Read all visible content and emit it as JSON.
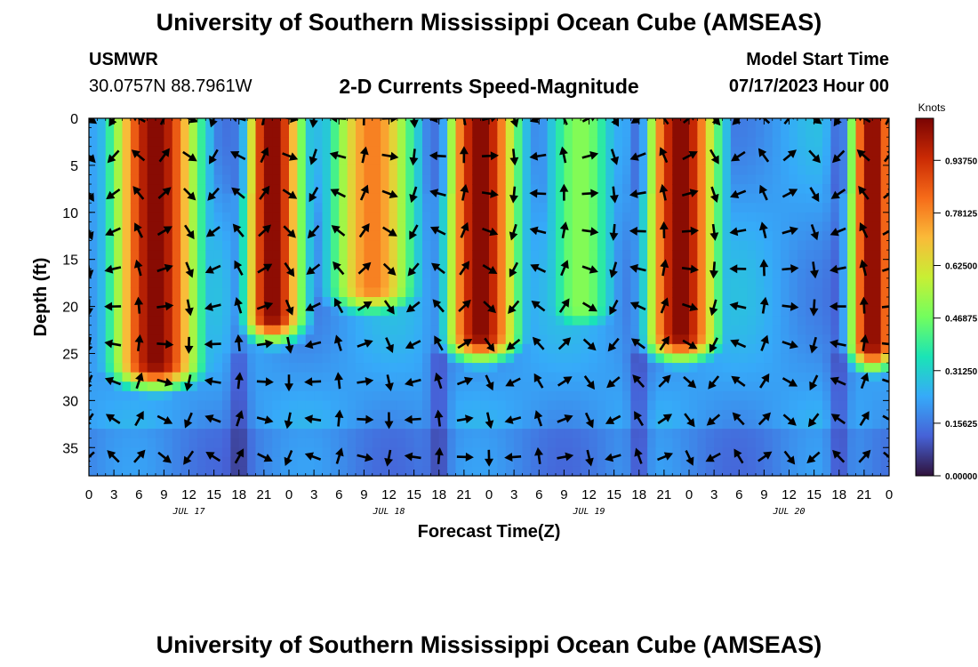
{
  "header": {
    "title": "University of Southern Mississippi Ocean Cube (AMSEAS)",
    "station": "USMWR",
    "coords": "30.0757N  88.7961W",
    "chart_title": "2-D Currents Speed-Magnitude",
    "model_start_label": "Model Start Time",
    "model_start_value": "07/17/2023 Hour 00"
  },
  "footer": {
    "title": "University of Southern Mississippi Ocean Cube (AMSEAS)"
  },
  "colors": {
    "background": "#ffffff",
    "palette": [
      "#30123b",
      "#4662d7",
      "#36aaf9",
      "#1ae4b6",
      "#72fe5e",
      "#c8ef34",
      "#faba39",
      "#f66b19",
      "#ca2a04",
      "#7a0403"
    ]
  },
  "chart_data": {
    "type": "heatmap",
    "title": "2-D Currents Speed-Magnitude",
    "xlabel": "Forecast Time(Z)",
    "ylabel": "Depth (ft)",
    "x_range_hours": [
      0,
      96
    ],
    "y_range_ft": [
      0,
      38
    ],
    "y_inverted": true,
    "x_tick_labels": [
      "0",
      "3",
      "6",
      "9",
      "12",
      "15",
      "18",
      "21",
      "0",
      "3",
      "6",
      "9",
      "12",
      "15",
      "18",
      "21",
      "0",
      "3",
      "6",
      "9",
      "12",
      "15",
      "18",
      "21",
      "0",
      "3",
      "6",
      "9",
      "12",
      "15",
      "18",
      "21",
      "0"
    ],
    "y_tick_labels": [
      "0",
      "5",
      "10",
      "15",
      "20",
      "25",
      "30",
      "35"
    ],
    "y_tick_values": [
      0,
      5,
      10,
      15,
      20,
      25,
      30,
      35
    ],
    "day_labels": [
      {
        "text": "JUL 17",
        "hour": 12
      },
      {
        "text": "JUL 18",
        "hour": 36
      },
      {
        "text": "JUL 19",
        "hour": 60
      },
      {
        "text": "JUL 20",
        "hour": 84
      }
    ],
    "colorbar": {
      "label": "Knots",
      "range": [
        0,
        1.0625
      ],
      "tick_labels": [
        "0.00000",
        "0.15625",
        "0.31250",
        "0.46875",
        "0.62500",
        "0.78125",
        "0.93750"
      ],
      "tick_values": [
        0,
        0.15625,
        0.3125,
        0.46875,
        0.625,
        0.78125,
        0.9375
      ]
    },
    "strong_current_bands": [
      {
        "center_hour": 8,
        "width_hours": 7,
        "depth_extent_ft": 26,
        "peak_knots": 1.05
      },
      {
        "center_hour": 22,
        "width_hours": 5,
        "depth_extent_ft": 21,
        "peak_knots": 1.05
      },
      {
        "center_hour": 34,
        "width_hours": 7,
        "depth_extent_ft": 18,
        "peak_knots": 0.8
      },
      {
        "center_hour": 47,
        "width_hours": 6,
        "depth_extent_ft": 23,
        "peak_knots": 1.05
      },
      {
        "center_hour": 59,
        "width_hours": 6,
        "depth_extent_ft": 20,
        "peak_knots": 0.5
      },
      {
        "center_hour": 71,
        "width_hours": 6,
        "depth_extent_ft": 23,
        "peak_knots": 1.05
      },
      {
        "center_hour": 94,
        "width_hours": 4,
        "depth_extent_ft": 24,
        "peak_knots": 1.05
      }
    ],
    "vector_rows_depth_ft": [
      0,
      4,
      8,
      12,
      16,
      20,
      24,
      28,
      32,
      36
    ],
    "vector_column_interval_hours": 3
  }
}
